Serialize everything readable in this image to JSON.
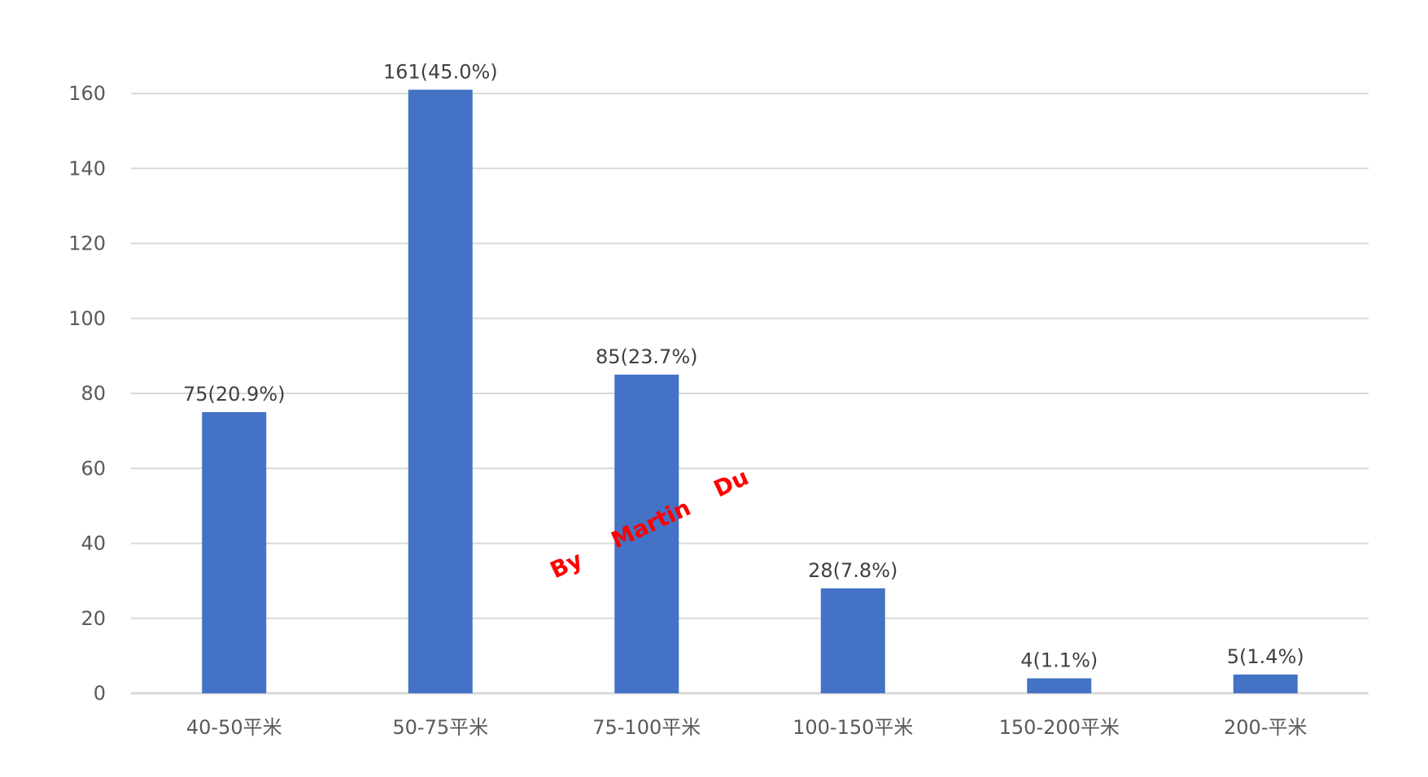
{
  "chart_data": {
    "type": "bar",
    "title": "",
    "xlabel": "",
    "ylabel": "",
    "categories": [
      "40-50平米",
      "50-75平米",
      "75-100平米",
      "100-150平米",
      "150-200平米",
      "200-平米"
    ],
    "values": [
      75,
      161,
      85,
      28,
      4,
      5
    ],
    "data_labels": [
      "75(20.9%)",
      "161(45.0%)",
      "85(23.7%)",
      "28(7.8%)",
      "4(1.1%)",
      "5(1.4%)"
    ],
    "ylim": [
      0,
      160
    ],
    "yticks": [
      0,
      20,
      40,
      60,
      80,
      100,
      120,
      140,
      160
    ],
    "grid": true,
    "legend": "none",
    "bar_color": "#4472C4",
    "gridline_color": "#D9D9D9"
  },
  "watermark": {
    "words": [
      "By",
      "Martin",
      "Du"
    ],
    "color": "#FF0000"
  }
}
